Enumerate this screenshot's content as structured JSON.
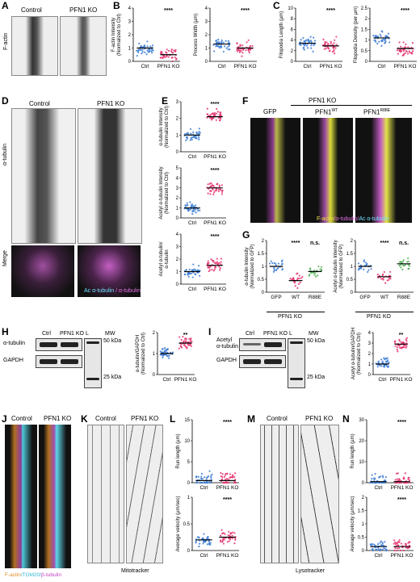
{
  "panels": {
    "A": {
      "letter": "A",
      "label_control": "Control",
      "label_ko": "PFN1 KO",
      "row_label": "F-actin"
    },
    "B": {
      "letter": "B"
    },
    "C": {
      "letter": "C"
    },
    "D": {
      "letter": "D",
      "label_control": "Control",
      "label_ko": "PFN1 KO",
      "row1": "α-tubulin",
      "row2": "Merge",
      "merge_caption_a": "Ac α-tubulin",
      "merge_caption_b": " / α-tubulin"
    },
    "E": {
      "letter": "E"
    },
    "F": {
      "letter": "F",
      "header": "PFN1 KO",
      "col1": "GFP",
      "col2": "PFN1",
      "col2_sup": "WT",
      "col3": "PFN1",
      "col3_sup": "R88E",
      "caption_a": "F-actin",
      "caption_b": "/α-tubulin/",
      "caption_c": "Ac α-tubulin"
    },
    "G": {
      "letter": "G",
      "group_label": "PFN1 KO"
    },
    "H": {
      "letter": "H",
      "ctrl": "Ctrl",
      "ko": "PFN1 KO",
      "l": "L",
      "mw": "MW",
      "band1": "α-tubulin",
      "band2": "GAPDH",
      "kda50": "50 kDa",
      "kda25": "25 kDa"
    },
    "I": {
      "letter": "I",
      "ctrl": "Ctrl",
      "ko": "PFN1 KO",
      "l": "L",
      "mw": "MW",
      "band1a": "Acetyl",
      "band1b": "α-tubulin",
      "band2": "GAPDH",
      "kda50": "50 kDa",
      "kda25": "25 kDa"
    },
    "J": {
      "letter": "J",
      "label_control": "Control",
      "label_ko": "PFN1 KO",
      "caption_a": "F-actin",
      "caption_b": "/TOM20/",
      "caption_c": "β-tubulin"
    },
    "K": {
      "letter": "K",
      "label_control": "Control",
      "label_ko": "PFN1 KO",
      "caption": "Mitotracker"
    },
    "L": {
      "letter": "L"
    },
    "M": {
      "letter": "M",
      "label_control": "Control",
      "label_ko": "PFN1 KO",
      "caption": "Lysotracker"
    },
    "N": {
      "letter": "N"
    }
  },
  "chart_data": [
    {
      "id": "B1",
      "type": "scatter",
      "ylabel": "F-actin Intensity\n(Normalized to Ctrl)",
      "categories": [
        "Ctrl",
        "PFN1 KO"
      ],
      "ylim": [
        0,
        4
      ],
      "yticks": [
        0,
        1,
        2,
        3,
        4
      ],
      "median": [
        1.0,
        0.5
      ],
      "significance": "****",
      "colors": [
        "#3a7bd5",
        "#e5336d"
      ]
    },
    {
      "id": "B2",
      "type": "scatter",
      "ylabel": "Process Width (µm)",
      "categories": [
        "Ctrl",
        "PFN1 KO"
      ],
      "ylim": [
        0,
        4
      ],
      "yticks": [
        0,
        1,
        2,
        3,
        4
      ],
      "median": [
        1.3,
        1.0
      ],
      "significance": "****",
      "colors": [
        "#3a7bd5",
        "#e5336d"
      ]
    },
    {
      "id": "C1",
      "type": "scatter",
      "ylabel": "Filopodia Length (µm)",
      "categories": [
        "Ctrl",
        "PFN1 KO"
      ],
      "ylim": [
        0,
        10
      ],
      "yticks": [
        0,
        2,
        4,
        6,
        8,
        10
      ],
      "median": [
        3.4,
        2.9
      ],
      "significance": "****",
      "colors": [
        "#3a7bd5",
        "#e5336d"
      ]
    },
    {
      "id": "C2",
      "type": "scatter",
      "ylabel": "Filopodia Density (per µm)",
      "categories": [
        "Ctrl",
        "PFN1 KO"
      ],
      "ylim": [
        0,
        2.5
      ],
      "yticks": [
        0,
        0.5,
        1,
        1.5,
        2,
        2.5
      ],
      "median": [
        1.1,
        0.6
      ],
      "significance": "****",
      "colors": [
        "#3a7bd5",
        "#e5336d"
      ]
    },
    {
      "id": "E1",
      "type": "scatter",
      "ylabel": "α-tubulin Intensity\n(Normalized to Ctrl)",
      "categories": [
        "Ctrl",
        "PFN1 KO"
      ],
      "ylim": [
        0,
        3
      ],
      "yticks": [
        0,
        1,
        2,
        3
      ],
      "median": [
        1.0,
        2.1
      ],
      "significance": "****",
      "colors": [
        "#3a7bd5",
        "#e5336d"
      ]
    },
    {
      "id": "E2",
      "type": "scatter",
      "ylabel": "Acetyl α-tubulin Intensity\n(Normalized to Ctrl)",
      "categories": [
        "Ctrl",
        "PFN1 KO"
      ],
      "ylim": [
        0,
        5
      ],
      "yticks": [
        0,
        1,
        2,
        3,
        4,
        5
      ],
      "median": [
        1.0,
        3.0
      ],
      "significance": "****",
      "colors": [
        "#3a7bd5",
        "#e5336d"
      ]
    },
    {
      "id": "E3",
      "type": "scatter",
      "ylabel": "Acetyl α-tubulin/\nα-tubulin",
      "categories": [
        "Ctrl",
        "PFN1 KO"
      ],
      "ylim": [
        0,
        4
      ],
      "yticks": [
        0,
        1,
        2,
        3,
        4
      ],
      "median": [
        1.0,
        1.5
      ],
      "significance": "****",
      "colors": [
        "#3a7bd5",
        "#e5336d"
      ]
    },
    {
      "id": "G1",
      "type": "scatter",
      "ylabel": "α-tubulin Intensity\n(Normalized to GFP)",
      "categories": [
        "GFP",
        "WT",
        "R88E"
      ],
      "ylim": [
        0,
        2
      ],
      "yticks": [
        0,
        0.5,
        1,
        1.5,
        2
      ],
      "median": [
        1.0,
        0.45,
        0.8
      ],
      "significance_labels": [
        "****",
        "n.s."
      ],
      "colors": [
        "#3a7bd5",
        "#e5336d",
        "#4caf50"
      ]
    },
    {
      "id": "G2",
      "type": "scatter",
      "ylabel": "Acetyl α-tubulin Intensity\n(Normalized to GFP)",
      "categories": [
        "GFP",
        "WT",
        "R88E"
      ],
      "ylim": [
        0,
        2
      ],
      "yticks": [
        0,
        0.5,
        1,
        1.5,
        2
      ],
      "median": [
        1.0,
        0.6,
        1.1
      ],
      "significance_labels": [
        "****",
        "n.s."
      ],
      "colors": [
        "#3a7bd5",
        "#e5336d",
        "#4caf50"
      ]
    },
    {
      "id": "H",
      "type": "scatter",
      "ylabel": "α-tubulin/GAPDH\n(Normalized to Ctrl)",
      "categories": [
        "Ctrl",
        "PFN1 KO"
      ],
      "ylim": [
        0,
        2
      ],
      "yticks": [
        0,
        1,
        2
      ],
      "median": [
        1.0,
        1.5
      ],
      "significance": "**",
      "colors": [
        "#3a7bd5",
        "#e5336d"
      ]
    },
    {
      "id": "I",
      "type": "scatter",
      "ylabel": "Acetyl α-tubulin/GAPDH\n(Normalized to Ctrl)",
      "categories": [
        "Ctrl",
        "PFN1 KO"
      ],
      "ylim": [
        0,
        4
      ],
      "yticks": [
        0,
        1,
        2,
        3,
        4
      ],
      "median": [
        1.0,
        2.9
      ],
      "significance": "**",
      "colors": [
        "#3a7bd5",
        "#e5336d"
      ]
    },
    {
      "id": "L1",
      "type": "scatter",
      "ylabel": "Run length (µm)",
      "categories": [
        "Ctrl",
        "PFN1 KO"
      ],
      "ylim": [
        0,
        15
      ],
      "yticks": [
        0,
        5,
        10,
        15
      ],
      "median": [
        0.5,
        0.5
      ],
      "significance": "****",
      "colors": [
        "#3a7bd5",
        "#e5336d"
      ]
    },
    {
      "id": "L2",
      "type": "scatter",
      "ylabel": "Average velocity (µm/sec)",
      "categories": [
        "Ctrl",
        "PFN1 KO"
      ],
      "ylim": [
        0,
        1
      ],
      "yticks": [
        0,
        0.5,
        1
      ],
      "median": [
        0.2,
        0.25
      ],
      "significance": "****",
      "colors": [
        "#3a7bd5",
        "#e5336d"
      ]
    },
    {
      "id": "N1",
      "type": "scatter",
      "ylabel": "Run length (µm)",
      "categories": [
        "Ctrl",
        "PFN1 KO"
      ],
      "ylim": [
        0,
        30
      ],
      "yticks": [
        0,
        10,
        20,
        30
      ],
      "median": [
        0.5,
        0.5
      ],
      "significance": "****",
      "colors": [
        "#3a7bd5",
        "#e5336d"
      ]
    },
    {
      "id": "N2",
      "type": "scatter",
      "ylabel": "Average velocity (µm/sec)",
      "categories": [
        "Ctrl",
        "PFN1 KO"
      ],
      "ylim": [
        0,
        2
      ],
      "yticks": [
        0,
        0.5,
        1,
        1.5,
        2
      ],
      "median": [
        0.15,
        0.15
      ],
      "significance": "****",
      "colors": [
        "#3a7bd5",
        "#e5336d"
      ]
    }
  ]
}
